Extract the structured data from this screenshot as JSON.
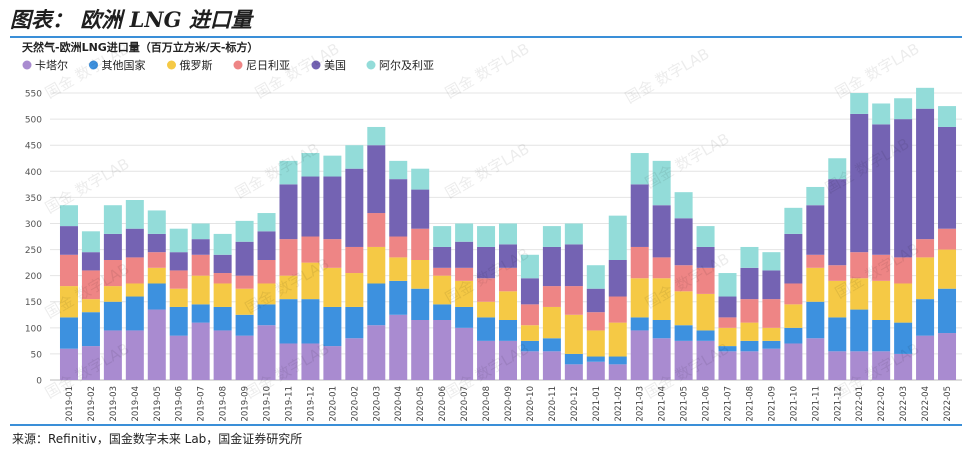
{
  "header": {
    "title": "图表： 欧洲 LNG 进口量",
    "source": "来源：Refinitiv，国金数字未来 Lab，国金证券研究所"
  },
  "watermark": "国金 数字LAB",
  "chart_data": {
    "type": "bar",
    "stacked": true,
    "title": "天然气-欧洲LNG进口量（百万立方米/天-标方）",
    "xlabel": "",
    "ylabel": "",
    "ylim": [
      0,
      575
    ],
    "yticks": [
      0,
      50,
      100,
      150,
      200,
      250,
      300,
      350,
      400,
      450,
      500,
      550
    ],
    "legend_position": "top-left",
    "grid": true,
    "categories": [
      "2019-01",
      "2019-02",
      "2019-03",
      "2019-04",
      "2019-05",
      "2019-06",
      "2019-07",
      "2019-08",
      "2019-09",
      "2019-10",
      "2019-11",
      "2019-12",
      "2020-01",
      "2020-02",
      "2020-03",
      "2020-04",
      "2020-05",
      "2020-06",
      "2020-07",
      "2020-08",
      "2020-09",
      "2020-10",
      "2020-11",
      "2020-12",
      "2021-01",
      "2021-02",
      "2021-03",
      "2021-04",
      "2021-05",
      "2021-06",
      "2021-07",
      "2021-08",
      "2021-09",
      "2021-10",
      "2021-11",
      "2021-12",
      "2022-01",
      "2022-02",
      "2022-03",
      "2022-04",
      "2022-05"
    ],
    "series": [
      {
        "name": "卡塔尔",
        "color": "#a98bd0",
        "values": [
          60,
          65,
          95,
          95,
          135,
          85,
          110,
          95,
          85,
          105,
          70,
          70,
          65,
          80,
          105,
          125,
          115,
          115,
          100,
          75,
          75,
          55,
          55,
          30,
          35,
          30,
          95,
          80,
          75,
          75,
          55,
          55,
          60,
          70,
          80,
          55,
          55,
          55,
          50,
          85,
          90
        ]
      },
      {
        "name": "其他国家",
        "color": "#3d91df",
        "values": [
          60,
          65,
          55,
          65,
          50,
          55,
          35,
          45,
          40,
          40,
          85,
          85,
          75,
          60,
          80,
          65,
          60,
          30,
          40,
          45,
          40,
          20,
          25,
          20,
          10,
          15,
          25,
          35,
          30,
          20,
          10,
          20,
          15,
          30,
          70,
          65,
          80,
          60,
          60,
          70,
          85
        ]
      },
      {
        "name": "俄罗斯",
        "color": "#f5c945",
        "values": [
          60,
          25,
          30,
          25,
          30,
          35,
          55,
          45,
          50,
          40,
          45,
          70,
          75,
          65,
          70,
          45,
          55,
          55,
          50,
          30,
          55,
          30,
          60,
          75,
          50,
          65,
          75,
          80,
          65,
          70,
          35,
          35,
          25,
          45,
          65,
          70,
          60,
          75,
          75,
          80,
          75
        ]
      },
      {
        "name": "尼日利亚",
        "color": "#ee8585",
        "values": [
          60,
          55,
          50,
          50,
          30,
          35,
          40,
          20,
          25,
          45,
          70,
          50,
          55,
          50,
          65,
          40,
          60,
          15,
          25,
          45,
          45,
          40,
          40,
          55,
          35,
          50,
          60,
          40,
          50,
          50,
          20,
          45,
          55,
          40,
          25,
          30,
          50,
          50,
          50,
          35,
          40
        ]
      },
      {
        "name": "美国",
        "color": "#7463b3",
        "values": [
          55,
          35,
          50,
          55,
          35,
          35,
          30,
          35,
          65,
          55,
          105,
          115,
          120,
          150,
          130,
          110,
          75,
          40,
          50,
          60,
          45,
          50,
          75,
          80,
          45,
          70,
          120,
          100,
          90,
          40,
          40,
          60,
          55,
          95,
          95,
          165,
          265,
          250,
          265,
          250,
          195
        ]
      },
      {
        "name": "阿尔及利亚",
        "color": "#93dcd9",
        "values": [
          40,
          40,
          55,
          55,
          45,
          45,
          30,
          40,
          40,
          35,
          45,
          45,
          40,
          45,
          35,
          35,
          40,
          40,
          35,
          40,
          40,
          45,
          40,
          40,
          45,
          85,
          60,
          85,
          50,
          40,
          45,
          40,
          35,
          50,
          35,
          40,
          40,
          40,
          40,
          40,
          40
        ]
      }
    ]
  }
}
